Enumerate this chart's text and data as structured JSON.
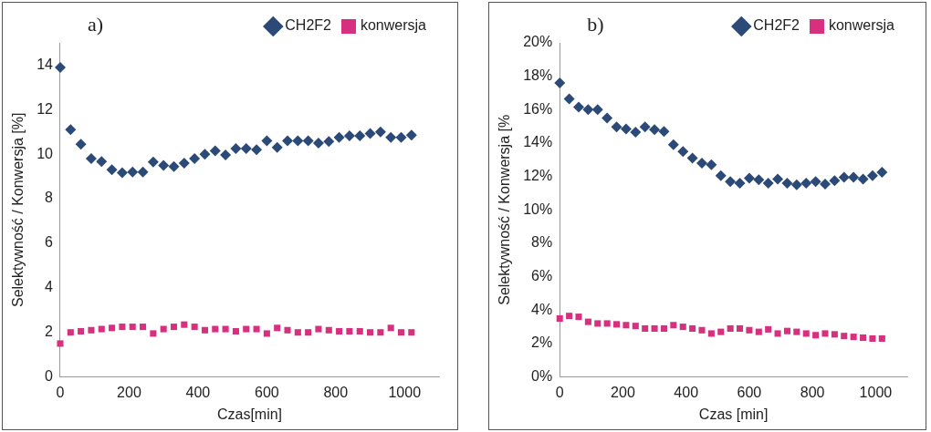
{
  "chart_data": [
    {
      "type": "scatter",
      "xlabel": "Czas[min]",
      "ylabel": "Selektywność / Konwersja [%]",
      "annotations": [
        "a)"
      ],
      "legend": "top right",
      "grid": false,
      "x": [
        0,
        30,
        60,
        90,
        120,
        150,
        180,
        210,
        240,
        270,
        300,
        330,
        360,
        390,
        420,
        450,
        480,
        510,
        540,
        570,
        600,
        630,
        660,
        690,
        720,
        750,
        780,
        810,
        840,
        870,
        900,
        930,
        960,
        990,
        1020
      ],
      "xlim": [
        0,
        1100
      ],
      "xticks": [
        0,
        200,
        400,
        600,
        800,
        1000
      ],
      "ylim": [
        0,
        15
      ],
      "yticks": [
        0,
        2,
        4,
        6,
        8,
        10,
        12,
        14
      ],
      "series": [
        {
          "name": "CH2F2",
          "color": "#2b4a78",
          "marker": "diamond",
          "values": [
            13.9,
            11.1,
            10.45,
            9.8,
            9.67,
            9.3,
            9.17,
            9.2,
            9.2,
            9.65,
            9.5,
            9.45,
            9.6,
            9.8,
            10.0,
            10.15,
            9.97,
            10.25,
            10.25,
            10.2,
            10.6,
            10.3,
            10.6,
            10.6,
            10.6,
            10.5,
            10.57,
            10.75,
            10.83,
            10.83,
            10.93,
            11.0,
            10.75,
            10.75,
            10.86
          ]
        },
        {
          "name": "konwersja",
          "color": "#d6307f",
          "marker": "square",
          "values": [
            1.5,
            2.0,
            2.05,
            2.1,
            2.15,
            2.2,
            2.25,
            2.25,
            2.25,
            1.95,
            2.15,
            2.25,
            2.35,
            2.25,
            2.1,
            2.15,
            2.15,
            2.05,
            2.15,
            2.15,
            1.95,
            2.2,
            2.1,
            2.0,
            2.0,
            2.15,
            2.1,
            2.05,
            2.05,
            2.05,
            2.0,
            2.0,
            2.2,
            2.0,
            2.0
          ]
        }
      ]
    },
    {
      "type": "scatter",
      "xlabel": "Czas [min]",
      "ylabel": "Selektywność / Konwersja [%",
      "annotations": [
        "b)"
      ],
      "legend": "top right",
      "grid": false,
      "x": [
        0,
        30,
        60,
        90,
        120,
        150,
        180,
        210,
        240,
        270,
        300,
        330,
        360,
        390,
        420,
        450,
        480,
        510,
        540,
        570,
        600,
        630,
        660,
        690,
        720,
        750,
        780,
        810,
        840,
        870,
        900,
        930,
        960,
        990,
        1020
      ],
      "xlim": [
        0,
        1100
      ],
      "xticks": [
        0,
        200,
        400,
        600,
        800,
        1000
      ],
      "ylim": [
        0,
        20
      ],
      "yticks": [
        {
          "value": 0,
          "label": "0%"
        },
        {
          "value": 2,
          "label": "2%"
        },
        {
          "value": 4,
          "label": "4%"
        },
        {
          "value": 6,
          "label": "6%"
        },
        {
          "value": 8,
          "label": "8%"
        },
        {
          "value": 10,
          "label": "10%"
        },
        {
          "value": 12,
          "label": "12%"
        },
        {
          "value": 14,
          "label": "14%"
        },
        {
          "value": 16,
          "label": "16%"
        },
        {
          "value": 18,
          "label": "18%"
        },
        {
          "value": 20,
          "label": "20%"
        }
      ],
      "series": [
        {
          "name": "CH2F2",
          "color": "#2b4a78",
          "marker": "diamond",
          "values": [
            17.6,
            16.65,
            16.15,
            16.0,
            16.0,
            15.5,
            14.97,
            14.85,
            14.65,
            14.97,
            14.8,
            14.7,
            13.9,
            13.5,
            13.1,
            12.8,
            12.7,
            12.05,
            11.7,
            11.6,
            11.9,
            11.8,
            11.6,
            11.85,
            11.6,
            11.5,
            11.6,
            11.7,
            11.55,
            11.75,
            11.95,
            11.95,
            11.85,
            12.05,
            12.25
          ]
        },
        {
          "name": "konwersja",
          "color": "#d6307f",
          "marker": "square",
          "values": [
            3.5,
            3.65,
            3.6,
            3.3,
            3.2,
            3.2,
            3.15,
            3.1,
            3.05,
            2.9,
            2.9,
            2.9,
            3.1,
            3.0,
            2.9,
            2.8,
            2.6,
            2.7,
            2.9,
            2.9,
            2.8,
            2.7,
            2.85,
            2.6,
            2.75,
            2.7,
            2.6,
            2.5,
            2.6,
            2.55,
            2.45,
            2.4,
            2.35,
            2.3,
            2.3
          ]
        }
      ]
    }
  ]
}
